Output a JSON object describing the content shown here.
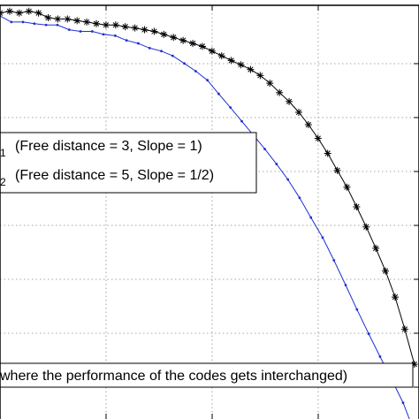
{
  "chart_data": {
    "type": "line",
    "grid": true,
    "xlim": [
      0,
      1
    ],
    "ylim": [
      0,
      1
    ],
    "series": [
      {
        "color": "#000000",
        "marker": "asterisk",
        "x": [
          0.0,
          0.023,
          0.046,
          0.069,
          0.092,
          0.115,
          0.138,
          0.161,
          0.184,
          0.207,
          0.23,
          0.253,
          0.276,
          0.299,
          0.322,
          0.345,
          0.368,
          0.391,
          0.414,
          0.437,
          0.46,
          0.483,
          0.506,
          0.529,
          0.552,
          0.575,
          0.598,
          0.621,
          0.644,
          0.667,
          0.69,
          0.713,
          0.736,
          0.759,
          0.782,
          0.805,
          0.828,
          0.851,
          0.874,
          0.897,
          0.92,
          0.943,
          0.966,
          0.989
        ],
        "y": [
          0.982,
          0.986,
          0.982,
          0.986,
          0.982,
          0.971,
          0.968,
          0.968,
          0.964,
          0.961,
          0.957,
          0.954,
          0.954,
          0.95,
          0.947,
          0.943,
          0.939,
          0.932,
          0.925,
          0.918,
          0.911,
          0.904,
          0.893,
          0.882,
          0.871,
          0.861,
          0.85,
          0.836,
          0.818,
          0.796,
          0.775,
          0.75,
          0.721,
          0.689,
          0.654,
          0.614,
          0.575,
          0.529,
          0.482,
          0.432,
          0.379,
          0.318,
          0.243,
          0.161
        ]
      },
      {
        "color": "#1f2fd1",
        "marker": "dot",
        "x": [
          0.0,
          0.027,
          0.055,
          0.082,
          0.11,
          0.137,
          0.165,
          0.192,
          0.22,
          0.247,
          0.275,
          0.302,
          0.33,
          0.357,
          0.385,
          0.412,
          0.44,
          0.467,
          0.495,
          0.522,
          0.55,
          0.577,
          0.605,
          0.632,
          0.66,
          0.687,
          0.715,
          0.742,
          0.77,
          0.797,
          0.825,
          0.852,
          0.88,
          0.907,
          0.935,
          0.962,
          0.99
        ],
        "y": [
          0.975,
          0.961,
          0.961,
          0.957,
          0.954,
          0.954,
          0.943,
          0.939,
          0.939,
          0.932,
          0.929,
          0.918,
          0.911,
          0.9,
          0.893,
          0.882,
          0.864,
          0.846,
          0.825,
          0.793,
          0.761,
          0.729,
          0.696,
          0.664,
          0.629,
          0.593,
          0.55,
          0.504,
          0.457,
          0.404,
          0.346,
          0.289,
          0.232,
          0.179,
          0.125,
          0.071,
          0.0
        ]
      }
    ],
    "legend": {
      "placement": "middle-left",
      "entries": [
        {
          "label": "(Free distance = 3, Slope = 1)",
          "subscript": "1"
        },
        {
          "label": "(Free distance = 5, Slope = 1/2)",
          "subscript": "2"
        }
      ]
    },
    "annotation": "where the performance of the codes gets interchanged)"
  }
}
